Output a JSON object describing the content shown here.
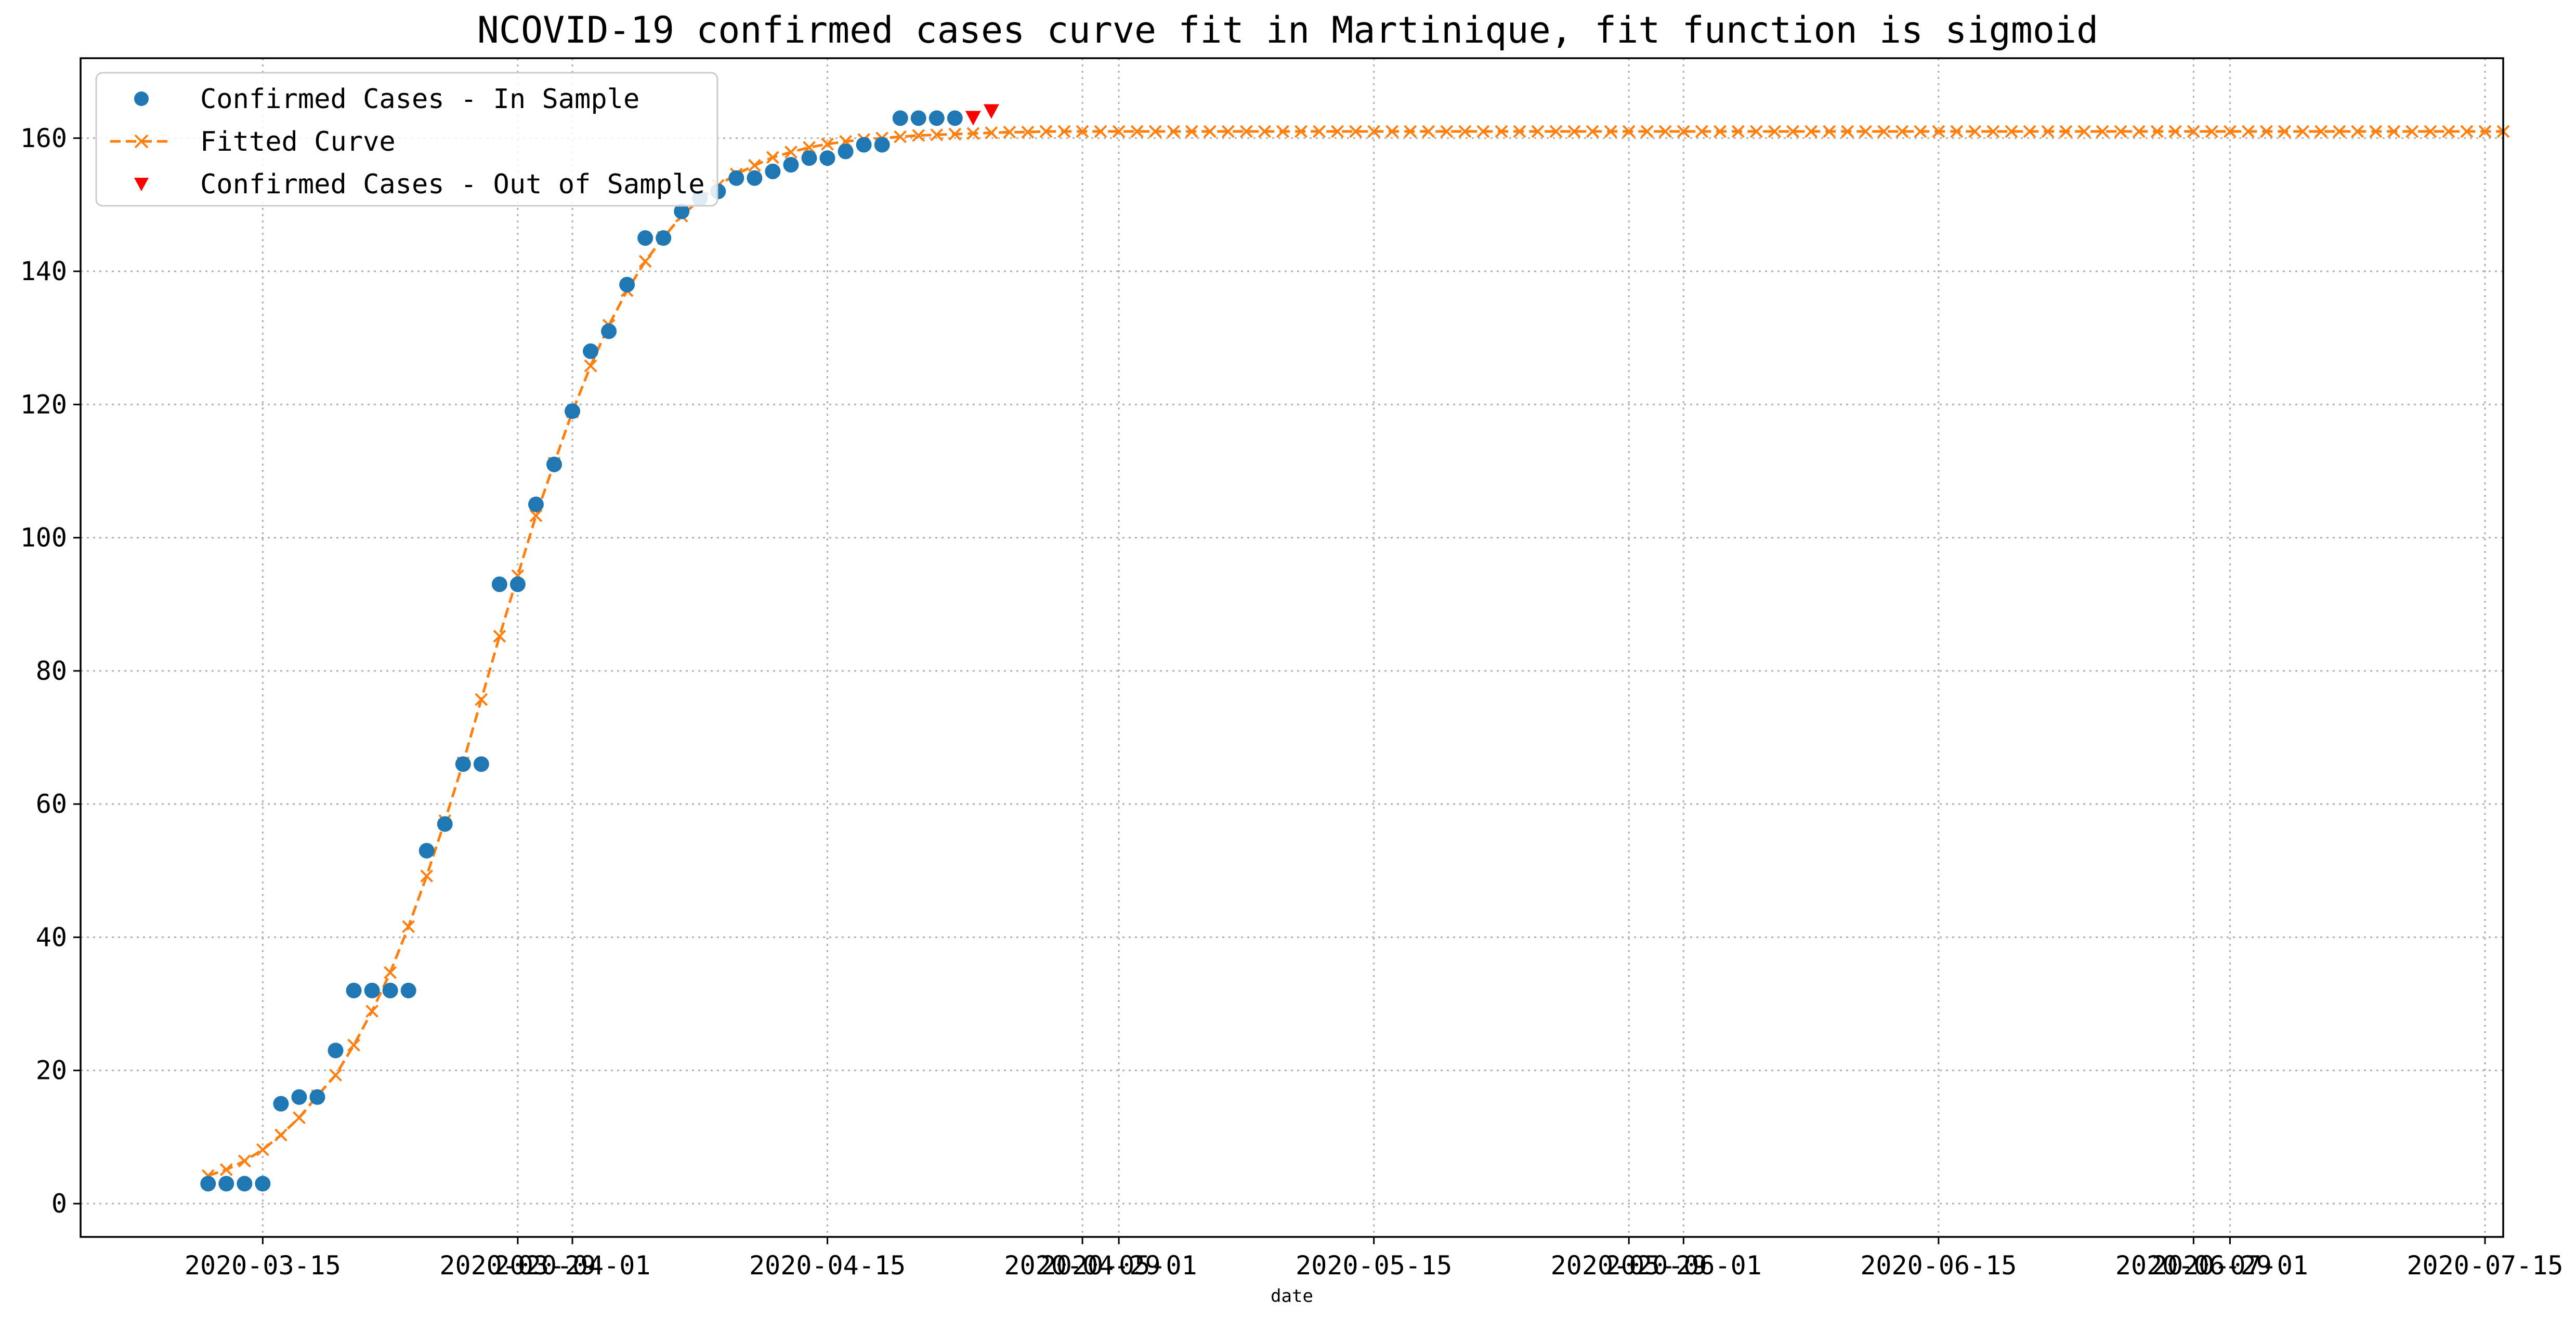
{
  "chart_data": {
    "type": "scatter",
    "title": "NCOVID-19 confirmed cases curve fit in Martinique, fit function is sigmoid",
    "xlabel": "date",
    "ylabel": "",
    "x_is_date": true,
    "xlim": [
      "2020-03-05",
      "2020-07-16"
    ],
    "ylim": [
      -5,
      172
    ],
    "yticks": [
      0,
      20,
      40,
      60,
      80,
      100,
      120,
      140,
      160
    ],
    "xticks": [
      {
        "date": "2020-03-15",
        "label": "2020-03-15"
      },
      {
        "date": "2020-03-29",
        "label": "2020-03-29"
      },
      {
        "date": "2020-04-01",
        "label": "2020-04-01"
      },
      {
        "date": "2020-04-15",
        "label": "2020-04-15"
      },
      {
        "date": "2020-04-29",
        "label": "2020-04-29"
      },
      {
        "date": "2020-05-01",
        "label": "2020-05-01"
      },
      {
        "date": "2020-05-15",
        "label": "2020-05-15"
      },
      {
        "date": "2020-05-29",
        "label": "2020-05-29"
      },
      {
        "date": "2020-06-01",
        "label": "2020-06-01"
      },
      {
        "date": "2020-06-15",
        "label": "2020-06-15"
      },
      {
        "date": "2020-06-29",
        "label": "2020-06-29"
      },
      {
        "date": "2020-07-01",
        "label": "2020-07-01"
      },
      {
        "date": "2020-07-15",
        "label": "2020-07-15"
      }
    ],
    "grid": true,
    "legend_position": "top-left",
    "series": [
      {
        "name": "Confirmed Cases - In Sample",
        "kind": "scatter",
        "marker": "circle",
        "color": "#1f77b4",
        "x": [
          "2020-03-12",
          "2020-03-13",
          "2020-03-14",
          "2020-03-15",
          "2020-03-16",
          "2020-03-17",
          "2020-03-18",
          "2020-03-19",
          "2020-03-20",
          "2020-03-21",
          "2020-03-22",
          "2020-03-23",
          "2020-03-24",
          "2020-03-25",
          "2020-03-26",
          "2020-03-27",
          "2020-03-28",
          "2020-03-29",
          "2020-03-30",
          "2020-03-31",
          "2020-04-01",
          "2020-04-02",
          "2020-04-03",
          "2020-04-04",
          "2020-04-05",
          "2020-04-06",
          "2020-04-07",
          "2020-04-08",
          "2020-04-09",
          "2020-04-10",
          "2020-04-11",
          "2020-04-12",
          "2020-04-13",
          "2020-04-14",
          "2020-04-15",
          "2020-04-16",
          "2020-04-17",
          "2020-04-18",
          "2020-04-19",
          "2020-04-20",
          "2020-04-21",
          "2020-04-22"
        ],
        "y": [
          3,
          3,
          3,
          3,
          15,
          16,
          16,
          23,
          32,
          32,
          32,
          32,
          53,
          57,
          66,
          66,
          93,
          93,
          105,
          111,
          119,
          128,
          131,
          138,
          145,
          145,
          149,
          151,
          152,
          154,
          154,
          155,
          156,
          157,
          157,
          158,
          159,
          159,
          163,
          163,
          163,
          163
        ]
      },
      {
        "name": "Fitted Curve",
        "kind": "line",
        "marker": "x",
        "line_style": "dashed",
        "color": "#ff7f0e",
        "x_start": "2020-03-12",
        "x_step_days": 1,
        "y": [
          4.2,
          5.1,
          6.4,
          8.1,
          10.3,
          12.9,
          16.2,
          19.3,
          23.8,
          28.9,
          34.7,
          41.6,
          49.2,
          57.5,
          66.2,
          75.7,
          85.2,
          94.3,
          103.3,
          111.2,
          118.9,
          125.8,
          131.9,
          137.1,
          141.5,
          145.1,
          148.3,
          150.8,
          152.9,
          154.6,
          155.9,
          157.1,
          157.9,
          158.6,
          159.1,
          159.5,
          159.8,
          160.0,
          160.2,
          160.4,
          160.5,
          160.6,
          160.7,
          160.8,
          160.9,
          160.9,
          161,
          161,
          161,
          161,
          161,
          161,
          161,
          161,
          161,
          161,
          161,
          161,
          161,
          161,
          161,
          161,
          161,
          161,
          161,
          161,
          161,
          161,
          161,
          161,
          161,
          161,
          161,
          161,
          161,
          161,
          161,
          161,
          161,
          161,
          161,
          161,
          161,
          161,
          161,
          161,
          161,
          161,
          161,
          161,
          161,
          161,
          161,
          161,
          161,
          161,
          161,
          161,
          161,
          161,
          161,
          161,
          161,
          161,
          161,
          161,
          161,
          161,
          161,
          161,
          161,
          161,
          161,
          161,
          161,
          161,
          161,
          161,
          161,
          161,
          161,
          161,
          161,
          161,
          161,
          161,
          161
        ]
      },
      {
        "name": "Confirmed Cases - Out of Sample",
        "kind": "scatter",
        "marker": "triangle-down",
        "color": "#ff0000",
        "x": [
          "2020-04-23",
          "2020-04-24"
        ],
        "y": [
          163,
          164
        ]
      }
    ]
  }
}
